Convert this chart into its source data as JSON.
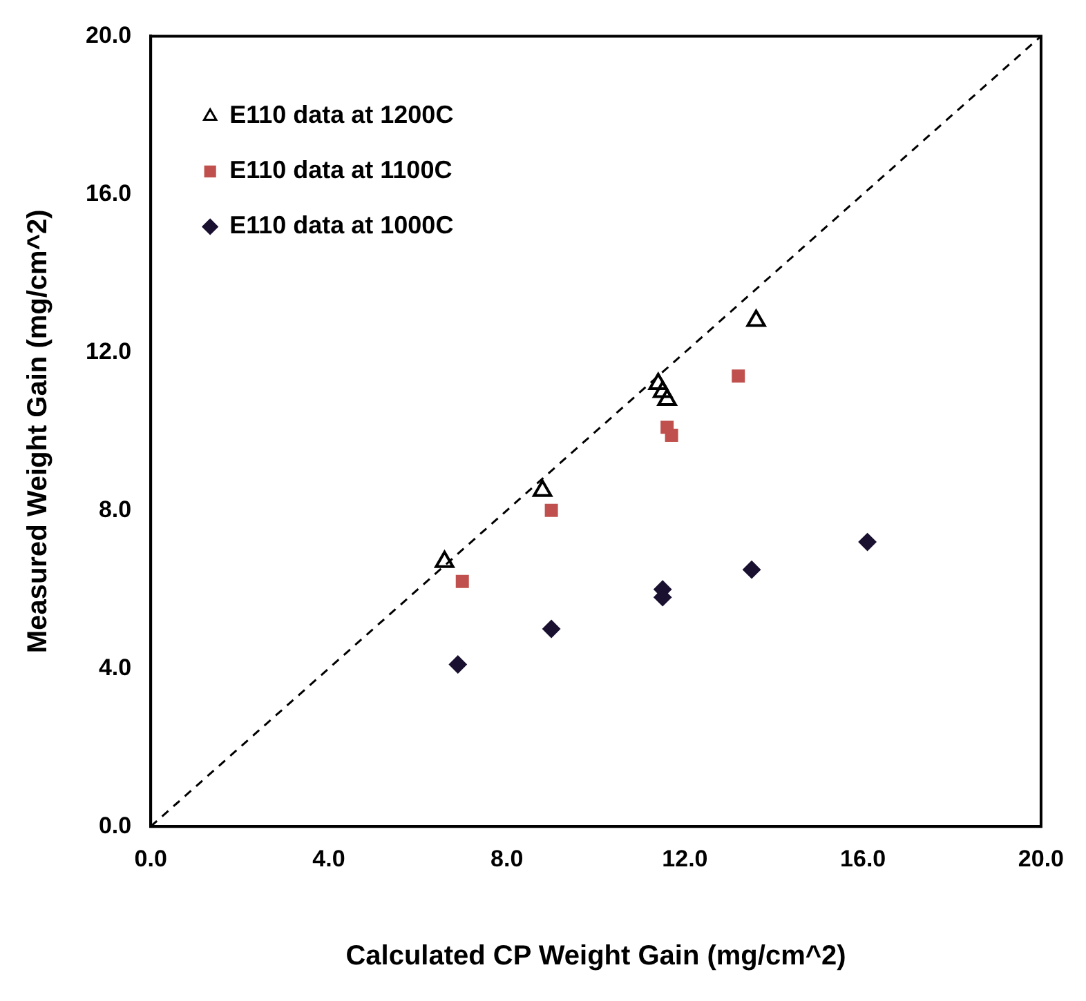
{
  "chart_data": {
    "type": "scatter",
    "xlabel": "Calculated CP Weight Gain (mg/cm^2)",
    "ylabel": "Measured Weight Gain (mg/cm^2)",
    "xlim": [
      0,
      20
    ],
    "ylim": [
      0,
      20
    ],
    "xticks": [
      {
        "value": 0,
        "label": "0.0"
      },
      {
        "value": 4,
        "label": "4.0"
      },
      {
        "value": 8,
        "label": "8.0"
      },
      {
        "value": 12,
        "label": "12.0"
      },
      {
        "value": 16,
        "label": "16.0"
      },
      {
        "value": 20,
        "label": "20.0"
      }
    ],
    "yticks": [
      {
        "value": 0,
        "label": "0.0"
      },
      {
        "value": 4,
        "label": "4.0"
      },
      {
        "value": 8,
        "label": "8.0"
      },
      {
        "value": 12,
        "label": "12.0"
      },
      {
        "value": 16,
        "label": "16.0"
      },
      {
        "value": 20,
        "label": "20.0"
      }
    ],
    "grid": false,
    "legend": "top left",
    "series": [
      {
        "name": "E110 data at 1200C",
        "color": "#000000",
        "marker": "triangle",
        "x": [
          6.6,
          8.8,
          11.4,
          11.5,
          11.6,
          13.6
        ],
        "values": [
          6.7,
          8.5,
          11.2,
          11.0,
          10.8,
          12.8
        ]
      },
      {
        "name": "E110 data at 1100C",
        "color": "#c0504d",
        "marker": "square",
        "x": [
          7.0,
          9.0,
          11.6,
          11.7,
          13.2
        ],
        "values": [
          6.2,
          8.0,
          10.1,
          9.9,
          11.4
        ]
      },
      {
        "name": "E110 data at 1000C",
        "color": "#1a1030",
        "marker": "diamond",
        "x": [
          6.9,
          9.0,
          11.5,
          11.5,
          13.5,
          16.1
        ],
        "values": [
          4.1,
          5.0,
          6.0,
          5.8,
          6.5,
          7.2
        ]
      },
      {
        "type": "line",
        "color": "#000000",
        "line_style": "dashed",
        "marker": "none",
        "x": [
          0,
          20
        ],
        "values": [
          0,
          20
        ]
      }
    ]
  }
}
